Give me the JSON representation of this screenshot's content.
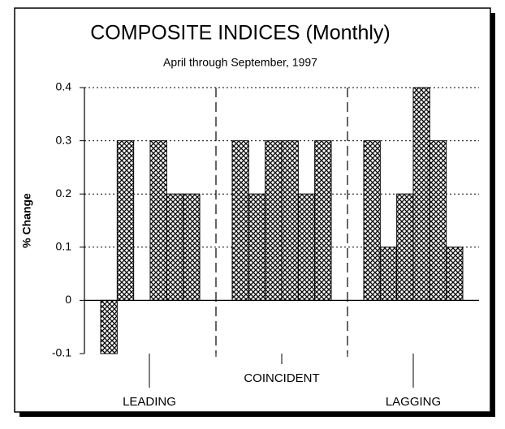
{
  "chart_data": {
    "type": "bar",
    "title": "COMPOSITE INDICES (Monthly)",
    "subtitle": "April through September, 1997",
    "y_label": "% Change",
    "groups": [
      {
        "name": "LEADING",
        "values": [
          -0.1,
          0.3,
          0,
          0.3,
          0.2,
          0.2
        ]
      },
      {
        "name": "COINCIDENT",
        "values": [
          0.3,
          0.2,
          0.3,
          0.3,
          0.2,
          0.3
        ]
      },
      {
        "name": "LAGGING",
        "values": [
          0.3,
          0.1,
          0.2,
          0.4,
          0.3,
          0.1
        ]
      }
    ],
    "ylim": [
      -0.1,
      0.4
    ],
    "yticks": [
      -0.1,
      0,
      0.1,
      0.2,
      0.3,
      0.4
    ],
    "grid": true,
    "color": "#000000"
  }
}
